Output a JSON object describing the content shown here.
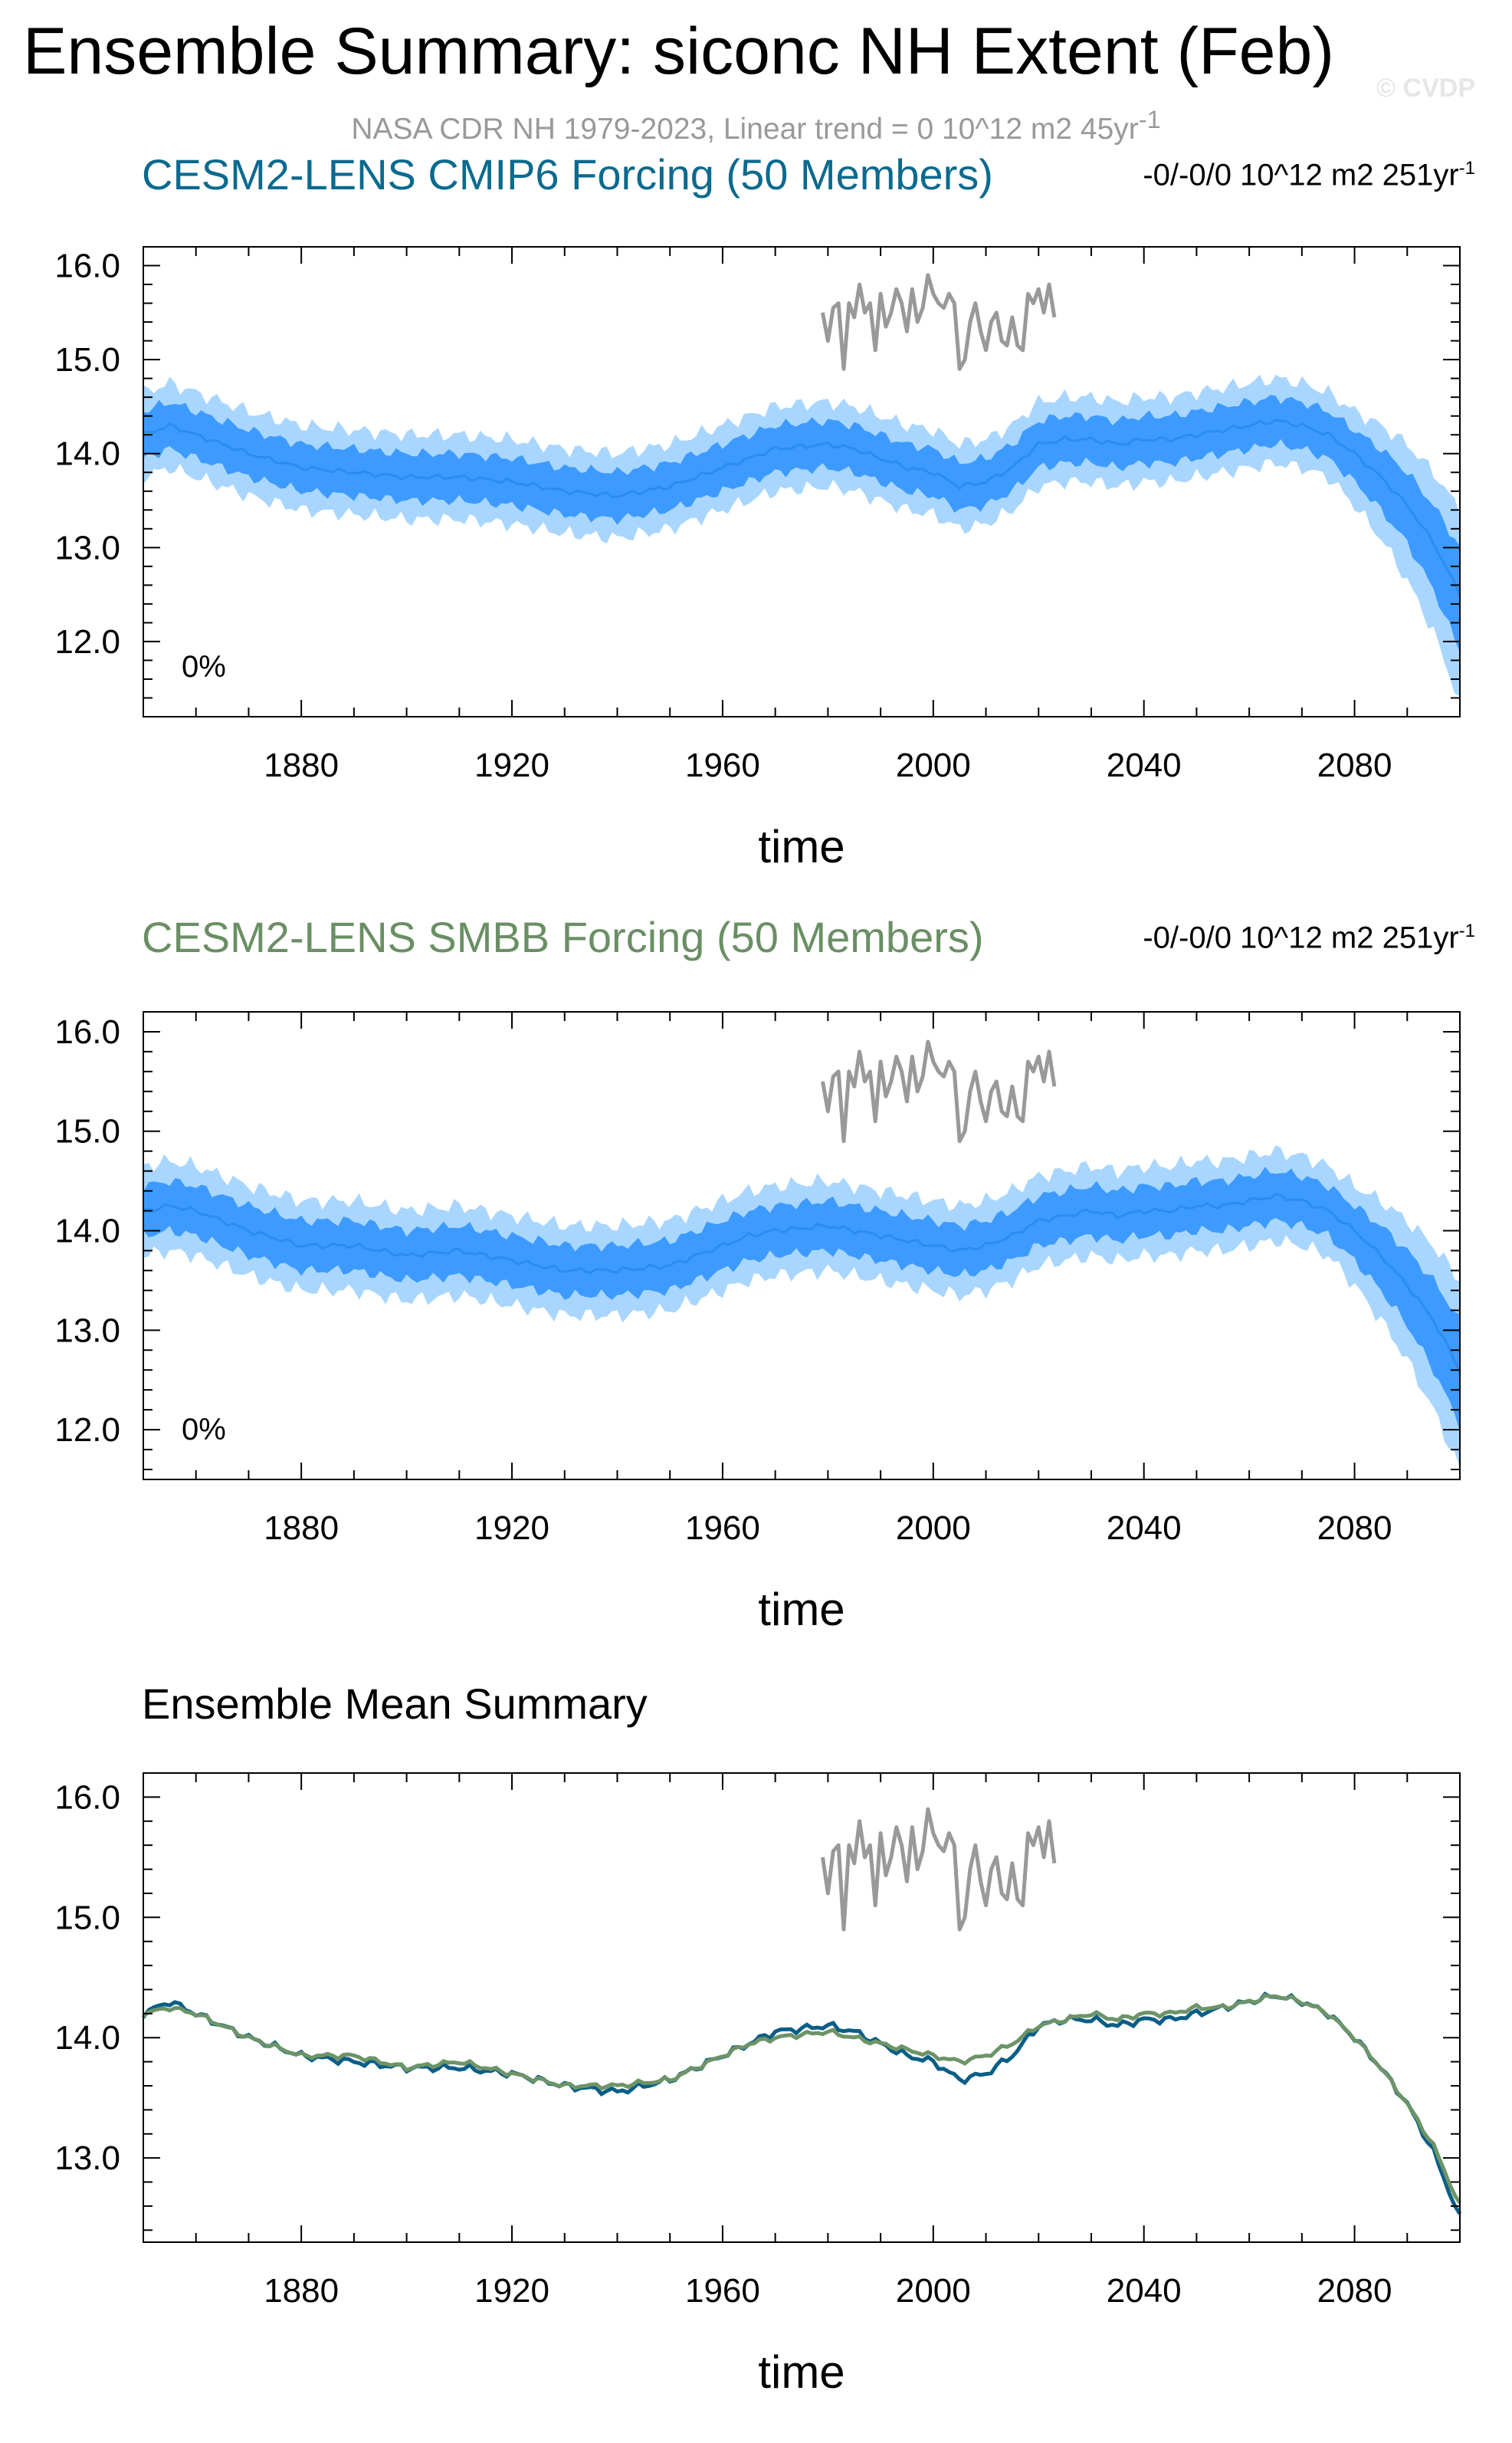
{
  "figure": {
    "title": "Ensemble Summary: siconc NH Extent (Feb)",
    "subtitle": "NASA CDR NH 1979-2023, Linear trend = 0 10^12 m2 45yr",
    "subtitle_sup": "-1",
    "watermark": "© CVDP"
  },
  "colors": {
    "outer_band": "#a9d6ff",
    "inner_band": "#3d9bff",
    "mean_line": "#2b8cf0",
    "obs_line": "#999999",
    "cmip6_title": "#0b6a8e",
    "smbb_title": "#6a8f64",
    "cmip6_mean": "#0b5e86",
    "smbb_mean": "#6d9468"
  },
  "panels": [
    {
      "title": "CESM2-LENS CMIP6 Forcing (50 Members)",
      "trend": "-0/-0/0 10^12 m2 251yr",
      "trend_sup": "-1",
      "percent": "0%",
      "xlabel": "time"
    },
    {
      "title": "CESM2-LENS SMBB Forcing (50 Members)",
      "trend": "-0/-0/0 10^12 m2 251yr",
      "trend_sup": "-1",
      "percent": "0%",
      "xlabel": "time"
    },
    {
      "title": "Ensemble Mean Summary",
      "xlabel": "time"
    }
  ],
  "chart_data": [
    {
      "type": "area",
      "title": "CESM2-LENS CMIP6 Forcing (50 Members)",
      "xlabel": "time",
      "ylabel": "",
      "xlim": [
        1850,
        2100
      ],
      "ylim": [
        11.2,
        16.2
      ],
      "xticks": [
        1880,
        1920,
        1960,
        2000,
        2040,
        2080
      ],
      "yticks": [
        12.0,
        13.0,
        14.0,
        15.0,
        16.0
      ],
      "ytick_labels": [
        "12.0",
        "13.0",
        "14.0",
        "15.0",
        "16.0"
      ],
      "x": [
        1850,
        1855,
        1860,
        1870,
        1880,
        1890,
        1900,
        1910,
        1920,
        1930,
        1940,
        1950,
        1960,
        1965,
        1970,
        1980,
        1985,
        1990,
        1995,
        2000,
        2005,
        2010,
        2015,
        2020,
        2025,
        2030,
        2035,
        2040,
        2045,
        2050,
        2055,
        2060,
        2065,
        2070,
        2075,
        2080,
        2085,
        2090,
        2095,
        2100
      ],
      "series": [
        {
          "role": "mean",
          "values": [
            14.2,
            14.3,
            14.2,
            14.0,
            13.85,
            13.8,
            13.75,
            13.75,
            13.7,
            13.6,
            13.55,
            13.65,
            13.85,
            13.95,
            14.05,
            14.1,
            14.05,
            13.95,
            13.85,
            13.8,
            13.65,
            13.7,
            13.85,
            14.1,
            14.15,
            14.15,
            14.1,
            14.15,
            14.15,
            14.2,
            14.25,
            14.3,
            14.35,
            14.3,
            14.2,
            14.0,
            13.75,
            13.45,
            13.05,
            12.5
          ]
        },
        {
          "role": "inner_low",
          "values": [
            13.95,
            14.05,
            13.95,
            13.75,
            13.6,
            13.55,
            13.5,
            13.5,
            13.45,
            13.35,
            13.3,
            13.4,
            13.6,
            13.7,
            13.8,
            13.85,
            13.8,
            13.7,
            13.6,
            13.55,
            13.4,
            13.45,
            13.6,
            13.85,
            13.9,
            13.9,
            13.85,
            13.9,
            13.9,
            13.95,
            14.0,
            14.05,
            14.1,
            14.05,
            13.95,
            13.7,
            13.4,
            13.05,
            12.55,
            11.9
          ]
        },
        {
          "role": "inner_high",
          "values": [
            14.45,
            14.55,
            14.45,
            14.25,
            14.1,
            14.05,
            14.0,
            14.0,
            13.95,
            13.85,
            13.8,
            13.9,
            14.1,
            14.2,
            14.3,
            14.35,
            14.3,
            14.2,
            14.1,
            14.05,
            13.9,
            13.95,
            14.1,
            14.35,
            14.4,
            14.4,
            14.35,
            14.4,
            14.4,
            14.45,
            14.5,
            14.55,
            14.6,
            14.55,
            14.45,
            14.25,
            14.05,
            13.8,
            13.45,
            13.0
          ]
        },
        {
          "role": "outer_low",
          "values": [
            13.75,
            13.85,
            13.75,
            13.55,
            13.4,
            13.35,
            13.3,
            13.3,
            13.25,
            13.15,
            13.1,
            13.2,
            13.4,
            13.5,
            13.6,
            13.65,
            13.6,
            13.5,
            13.4,
            13.35,
            13.2,
            13.25,
            13.4,
            13.65,
            13.7,
            13.7,
            13.65,
            13.7,
            13.7,
            13.75,
            13.8,
            13.85,
            13.9,
            13.85,
            13.75,
            13.45,
            13.1,
            12.65,
            12.1,
            11.35
          ]
        },
        {
          "role": "outer_high",
          "values": [
            14.65,
            14.75,
            14.65,
            14.45,
            14.3,
            14.25,
            14.2,
            14.2,
            14.15,
            14.05,
            14.0,
            14.1,
            14.3,
            14.4,
            14.5,
            14.55,
            14.5,
            14.4,
            14.3,
            14.25,
            14.1,
            14.15,
            14.3,
            14.55,
            14.6,
            14.6,
            14.55,
            14.6,
            14.6,
            14.65,
            14.7,
            14.75,
            14.8,
            14.75,
            14.65,
            14.45,
            14.3,
            14.1,
            13.8,
            13.4
          ]
        }
      ],
      "obs": {
        "x": [
          1979,
          1980,
          1981,
          1982,
          1983,
          1984,
          1985,
          1986,
          1987,
          1988,
          1989,
          1990,
          1991,
          1992,
          1993,
          1994,
          1995,
          1996,
          1997,
          1998,
          1999,
          2000,
          2001,
          2002,
          2003,
          2004,
          2005,
          2006,
          2007,
          2008,
          2009,
          2010,
          2011,
          2012,
          2013,
          2014,
          2015,
          2016,
          2017,
          2018,
          2019,
          2020,
          2021,
          2022,
          2023
        ],
        "values": [
          15.5,
          15.2,
          15.55,
          15.6,
          14.9,
          15.6,
          15.45,
          15.8,
          15.5,
          15.6,
          15.1,
          15.7,
          15.35,
          15.5,
          15.75,
          15.6,
          15.3,
          15.75,
          15.4,
          15.55,
          15.9,
          15.7,
          15.6,
          15.55,
          15.7,
          15.6,
          14.9,
          15.0,
          15.4,
          15.6,
          15.3,
          15.1,
          15.4,
          15.5,
          15.2,
          15.15,
          15.45,
          15.15,
          15.1,
          15.7,
          15.6,
          15.75,
          15.5,
          15.8,
          15.45
        ]
      }
    },
    {
      "type": "area",
      "title": "CESM2-LENS SMBB Forcing (50 Members)",
      "xlabel": "time",
      "ylabel": "",
      "xlim": [
        1850,
        2100
      ],
      "ylim": [
        11.5,
        16.2
      ],
      "xticks": [
        1880,
        1920,
        1960,
        2000,
        2040,
        2080
      ],
      "yticks": [
        12.0,
        13.0,
        14.0,
        15.0,
        16.0
      ],
      "ytick_labels": [
        "12.0",
        "13.0",
        "14.0",
        "15.0",
        "16.0"
      ],
      "x": [
        1850,
        1855,
        1860,
        1870,
        1880,
        1890,
        1900,
        1910,
        1920,
        1930,
        1940,
        1950,
        1960,
        1965,
        1970,
        1980,
        1985,
        1990,
        1995,
        2000,
        2005,
        2010,
        2015,
        2020,
        2025,
        2030,
        2035,
        2040,
        2045,
        2050,
        2055,
        2060,
        2065,
        2070,
        2075,
        2080,
        2085,
        2090,
        2095,
        2100
      ],
      "series": [
        {
          "role": "mean",
          "values": [
            14.2,
            14.25,
            14.2,
            14.0,
            13.85,
            13.85,
            13.75,
            13.8,
            13.7,
            13.6,
            13.6,
            13.65,
            13.85,
            13.95,
            14.0,
            14.05,
            14.0,
            13.95,
            13.9,
            13.85,
            13.8,
            13.85,
            13.95,
            14.1,
            14.15,
            14.2,
            14.15,
            14.2,
            14.2,
            14.25,
            14.25,
            14.3,
            14.35,
            14.3,
            14.2,
            14.0,
            13.75,
            13.45,
            13.1,
            12.6
          ]
        },
        {
          "role": "inner_low",
          "values": [
            13.95,
            14.0,
            13.95,
            13.75,
            13.6,
            13.6,
            13.5,
            13.55,
            13.45,
            13.35,
            13.35,
            13.4,
            13.6,
            13.7,
            13.75,
            13.8,
            13.75,
            13.7,
            13.65,
            13.6,
            13.55,
            13.6,
            13.7,
            13.85,
            13.9,
            13.95,
            13.9,
            13.95,
            13.95,
            14.0,
            14.0,
            14.05,
            14.1,
            14.05,
            13.95,
            13.7,
            13.4,
            13.05,
            12.6,
            12.05
          ]
        },
        {
          "role": "inner_high",
          "values": [
            14.45,
            14.5,
            14.45,
            14.25,
            14.1,
            14.1,
            14.0,
            14.05,
            13.95,
            13.85,
            13.85,
            13.9,
            14.1,
            14.2,
            14.25,
            14.3,
            14.25,
            14.2,
            14.15,
            14.1,
            14.05,
            14.1,
            14.2,
            14.35,
            14.4,
            14.45,
            14.4,
            14.45,
            14.45,
            14.5,
            14.5,
            14.55,
            14.6,
            14.55,
            14.45,
            14.25,
            14.05,
            13.8,
            13.5,
            13.1
          ]
        },
        {
          "role": "outer_low",
          "values": [
            13.75,
            13.8,
            13.75,
            13.55,
            13.4,
            13.4,
            13.3,
            13.35,
            13.25,
            13.15,
            13.15,
            13.2,
            13.4,
            13.5,
            13.55,
            13.6,
            13.55,
            13.5,
            13.45,
            13.4,
            13.35,
            13.4,
            13.5,
            13.65,
            13.7,
            13.75,
            13.7,
            13.75,
            13.75,
            13.8,
            13.8,
            13.85,
            13.9,
            13.85,
            13.75,
            13.45,
            13.1,
            12.7,
            12.2,
            11.6
          ]
        },
        {
          "role": "outer_high",
          "values": [
            14.65,
            14.7,
            14.65,
            14.45,
            14.3,
            14.3,
            14.2,
            14.25,
            14.15,
            14.05,
            14.05,
            14.1,
            14.3,
            14.4,
            14.45,
            14.5,
            14.45,
            14.4,
            14.35,
            14.3,
            14.25,
            14.3,
            14.4,
            14.55,
            14.6,
            14.65,
            14.6,
            14.65,
            14.65,
            14.7,
            14.7,
            14.75,
            14.8,
            14.75,
            14.65,
            14.45,
            14.3,
            14.1,
            13.85,
            13.5
          ]
        }
      ],
      "obs": {
        "x": [
          1979,
          1980,
          1981,
          1982,
          1983,
          1984,
          1985,
          1986,
          1987,
          1988,
          1989,
          1990,
          1991,
          1992,
          1993,
          1994,
          1995,
          1996,
          1997,
          1998,
          1999,
          2000,
          2001,
          2002,
          2003,
          2004,
          2005,
          2006,
          2007,
          2008,
          2009,
          2010,
          2011,
          2012,
          2013,
          2014,
          2015,
          2016,
          2017,
          2018,
          2019,
          2020,
          2021,
          2022,
          2023
        ],
        "values": [
          15.5,
          15.2,
          15.55,
          15.6,
          14.9,
          15.6,
          15.45,
          15.8,
          15.5,
          15.6,
          15.1,
          15.7,
          15.35,
          15.5,
          15.75,
          15.6,
          15.3,
          15.75,
          15.4,
          15.55,
          15.9,
          15.7,
          15.6,
          15.55,
          15.7,
          15.6,
          14.9,
          15.0,
          15.4,
          15.6,
          15.3,
          15.1,
          15.4,
          15.5,
          15.2,
          15.15,
          15.45,
          15.15,
          15.1,
          15.7,
          15.6,
          15.75,
          15.5,
          15.8,
          15.45
        ]
      }
    },
    {
      "type": "line",
      "title": "Ensemble Mean Summary",
      "xlabel": "time",
      "ylabel": "",
      "xlim": [
        1850,
        2100
      ],
      "ylim": [
        12.3,
        16.2
      ],
      "xticks": [
        1880,
        1920,
        1960,
        2000,
        2040,
        2080
      ],
      "yticks": [
        13.0,
        14.0,
        15.0,
        16.0
      ],
      "ytick_labels": [
        "13.0",
        "14.0",
        "15.0",
        "16.0"
      ],
      "x": [
        1850,
        1855,
        1860,
        1870,
        1880,
        1890,
        1900,
        1910,
        1920,
        1930,
        1940,
        1950,
        1960,
        1965,
        1970,
        1980,
        1985,
        1990,
        1995,
        2000,
        2005,
        2010,
        2015,
        2020,
        2025,
        2030,
        2035,
        2040,
        2045,
        2050,
        2055,
        2060,
        2065,
        2070,
        2075,
        2080,
        2085,
        2090,
        2095,
        2100
      ],
      "series": [
        {
          "role": "cmip6_mean",
          "values": [
            14.2,
            14.3,
            14.2,
            14.0,
            13.85,
            13.8,
            13.75,
            13.75,
            13.7,
            13.6,
            13.55,
            13.65,
            13.85,
            13.95,
            14.05,
            14.1,
            14.05,
            13.95,
            13.85,
            13.8,
            13.65,
            13.7,
            13.85,
            14.1,
            14.15,
            14.15,
            14.1,
            14.15,
            14.15,
            14.2,
            14.25,
            14.3,
            14.35,
            14.3,
            14.2,
            14.0,
            13.75,
            13.45,
            13.05,
            12.5
          ]
        },
        {
          "role": "smbb_mean",
          "values": [
            14.2,
            14.25,
            14.2,
            14.0,
            13.85,
            13.85,
            13.75,
            13.8,
            13.7,
            13.6,
            13.6,
            13.65,
            13.85,
            13.95,
            14.0,
            14.05,
            14.0,
            13.95,
            13.9,
            13.85,
            13.8,
            13.85,
            13.95,
            14.1,
            14.15,
            14.2,
            14.15,
            14.2,
            14.2,
            14.25,
            14.25,
            14.3,
            14.35,
            14.3,
            14.2,
            14.0,
            13.75,
            13.45,
            13.1,
            12.6
          ]
        }
      ],
      "obs": {
        "x": [
          1979,
          1980,
          1981,
          1982,
          1983,
          1984,
          1985,
          1986,
          1987,
          1988,
          1989,
          1990,
          1991,
          1992,
          1993,
          1994,
          1995,
          1996,
          1997,
          1998,
          1999,
          2000,
          2001,
          2002,
          2003,
          2004,
          2005,
          2006,
          2007,
          2008,
          2009,
          2010,
          2011,
          2012,
          2013,
          2014,
          2015,
          2016,
          2017,
          2018,
          2019,
          2020,
          2021,
          2022,
          2023
        ],
        "values": [
          15.5,
          15.2,
          15.55,
          15.6,
          14.9,
          15.6,
          15.45,
          15.8,
          15.5,
          15.6,
          15.1,
          15.7,
          15.35,
          15.5,
          15.75,
          15.6,
          15.3,
          15.75,
          15.4,
          15.55,
          15.9,
          15.7,
          15.6,
          15.55,
          15.7,
          15.6,
          14.9,
          15.0,
          15.4,
          15.6,
          15.3,
          15.1,
          15.4,
          15.5,
          15.2,
          15.15,
          15.45,
          15.15,
          15.1,
          15.7,
          15.6,
          15.75,
          15.5,
          15.8,
          15.45
        ]
      }
    }
  ]
}
